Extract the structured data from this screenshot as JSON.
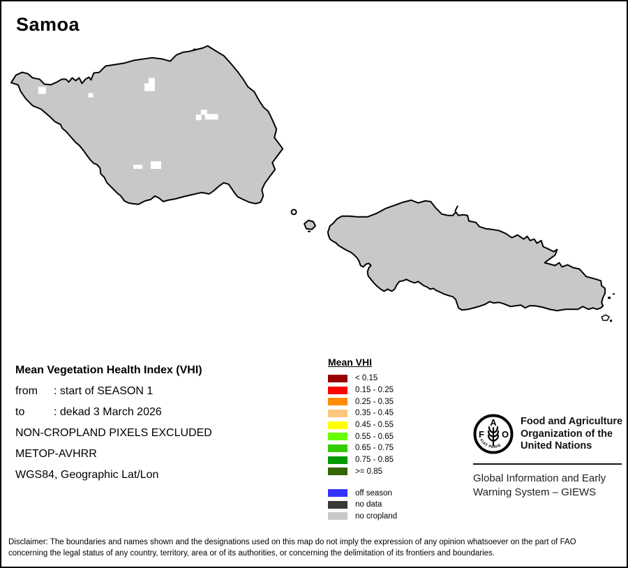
{
  "map": {
    "title": "Samoa",
    "island_fill": "#C8C8C8",
    "outline_color": "#000000"
  },
  "info": {
    "title": "Mean Vegetation Health Index (VHI)",
    "lines": [
      {
        "label": "from",
        "value": ": start of SEASON 1"
      },
      {
        "label": "to",
        "value": ": dekad 3 March 2026"
      },
      {
        "label": "",
        "value": "NON-CROPLAND PIXELS EXCLUDED"
      },
      {
        "label": "",
        "value": "METOP-AVHRR"
      },
      {
        "label": "",
        "value": "WGS84, Geographic Lat/Lon"
      }
    ]
  },
  "legend": {
    "title": "Mean VHI",
    "classes": [
      {
        "label": "< 0.15",
        "color": "#990000"
      },
      {
        "label": "0.15 - 0.25",
        "color": "#FF0000"
      },
      {
        "label": "0.25 - 0.35",
        "color": "#FF8C00"
      },
      {
        "label": "0.35 - 0.45",
        "color": "#FAC87D"
      },
      {
        "label": "0.45 - 0.55",
        "color": "#FFFF00"
      },
      {
        "label": "0.55 - 0.65",
        "color": "#66FF00"
      },
      {
        "label": "0.65 - 0.75",
        "color": "#33CC00"
      },
      {
        "label": "0.75 - 0.85",
        "color": "#009900"
      },
      {
        "label": ">= 0.85",
        "color": "#336600"
      }
    ],
    "special": [
      {
        "label": "off season",
        "color": "#3333FF"
      },
      {
        "label": "no data",
        "color": "#383838"
      },
      {
        "label": "no cropland",
        "color": "#C8C8C8"
      }
    ]
  },
  "fao": {
    "logo_letters": [
      "F",
      "A",
      "O"
    ],
    "logo_motto": "FIAT  PANIS",
    "org_lines": [
      "Food and Agriculture",
      "Organization of the",
      "United Nations"
    ],
    "giews_lines": [
      "Global Information and Early",
      "Warning System – GIEWS"
    ]
  },
  "disclaimer": {
    "lines": [
      "Disclaimer: The boundaries and names shown and the designations used on this map do not imply the expression of any opinion whatsoever on the part of FAO",
      "concerning the legal status of any country, territory, area or of its authorities, or concerning the delimitation of its frontiers and boundaries."
    ]
  }
}
